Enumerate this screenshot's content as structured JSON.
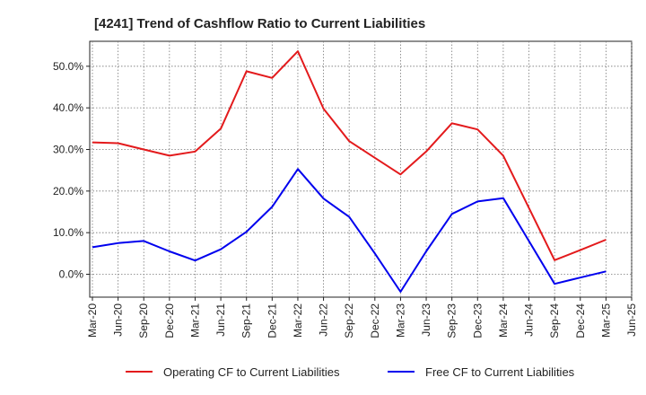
{
  "chart_data": {
    "type": "line",
    "title": "[4241]  Trend of Cashflow Ratio to Current Liabilities",
    "xlabel": "",
    "ylabel": "",
    "categories": [
      "Mar-20",
      "Jun-20",
      "Sep-20",
      "Dec-20",
      "Mar-21",
      "Jun-21",
      "Sep-21",
      "Dec-21",
      "Mar-22",
      "Jun-22",
      "Sep-22",
      "Dec-22",
      "Mar-23",
      "Jun-23",
      "Sep-23",
      "Dec-23",
      "Mar-24",
      "Jun-24",
      "Sep-24",
      "Dec-24",
      "Mar-25",
      "Jun-25"
    ],
    "y_ticks": [
      0,
      10,
      20,
      30,
      40,
      50
    ],
    "y_tick_labels": [
      "0.0%",
      "10.0%",
      "20.0%",
      "30.0%",
      "40.0%",
      "50.0%"
    ],
    "ylim": [
      -5.5,
      56
    ],
    "grid": true,
    "legend_position": "bottom",
    "series": [
      {
        "name": "Operating CF to Current Liabilities",
        "color": "#e31a1c",
        "values": [
          31.7,
          31.5,
          30.0,
          28.5,
          29.5,
          35.0,
          48.8,
          47.2,
          53.6,
          39.8,
          32.0,
          28.0,
          24.0,
          29.5,
          36.3,
          34.8,
          28.5,
          null,
          3.4,
          5.8,
          8.3,
          null
        ]
      },
      {
        "name": "Free CF to Current Liabilities",
        "color": "#0000ee",
        "values": [
          6.5,
          7.5,
          8.0,
          5.5,
          3.3,
          6.0,
          10.2,
          16.2,
          25.3,
          18.2,
          13.8,
          5.0,
          -4.2,
          5.5,
          14.5,
          17.5,
          18.3,
          null,
          -2.3,
          -0.8,
          0.7,
          null
        ]
      }
    ]
  }
}
